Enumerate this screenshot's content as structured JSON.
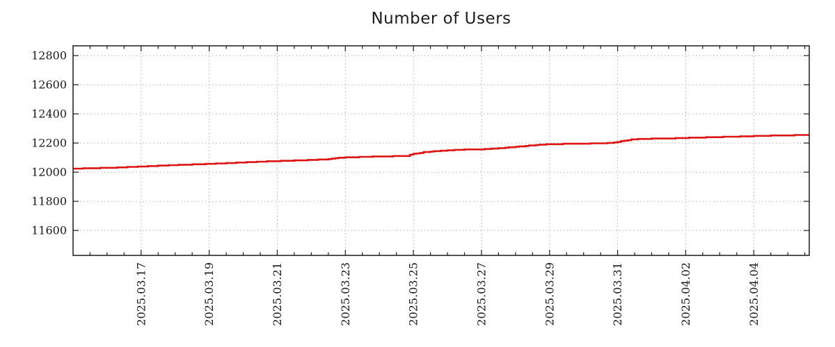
{
  "page": {
    "background_color": "#ffffff"
  },
  "chart_data": {
    "type": "line",
    "title": "Number of Users",
    "grid": {
      "style": "dotted",
      "color": "#b5b5b5",
      "shown": true
    },
    "axis_color": "#1a1a1a",
    "x_axis": {
      "start_date": "2025.03.15",
      "end_day_offset": 21.63,
      "major_tick_day_offsets": [
        2,
        4,
        6,
        8,
        10,
        12,
        14,
        16,
        18,
        20
      ],
      "major_tick_labels": [
        "2025.03.17",
        "2025.03.19",
        "2025.03.21",
        "2025.03.23",
        "2025.03.25",
        "2025.03.27",
        "2025.03.29",
        "2025.03.31",
        "2025.04.02",
        "2025.04.04"
      ],
      "minor_tick_interval_days": 0.5,
      "label_rotation_deg": -90
    },
    "y_axis": {
      "min": 11429,
      "max": 12867,
      "tick_values": [
        11600,
        11800,
        12000,
        12200,
        12400,
        12600,
        12800
      ],
      "tick_labels": [
        "11600",
        "11800",
        "12000",
        "12200",
        "12400",
        "12600",
        "12800"
      ]
    },
    "series": [
      {
        "name": "number-of-users",
        "color": "#dc1414",
        "line_width": 2.6,
        "style": "steps",
        "points_day_offset_value": [
          [
            0.0,
            12024
          ],
          [
            0.4,
            12026
          ],
          [
            0.8,
            12029
          ],
          [
            1.2,
            12031
          ],
          [
            1.6,
            12035
          ],
          [
            2.0,
            12039
          ],
          [
            2.5,
            12044
          ],
          [
            3.0,
            12049
          ],
          [
            3.5,
            12053
          ],
          [
            4.0,
            12057
          ],
          [
            4.5,
            12062
          ],
          [
            5.0,
            12067
          ],
          [
            5.5,
            12072
          ],
          [
            6.0,
            12076
          ],
          [
            6.5,
            12080
          ],
          [
            7.0,
            12084
          ],
          [
            7.4,
            12088
          ],
          [
            7.7,
            12097
          ],
          [
            8.0,
            12101
          ],
          [
            8.5,
            12105
          ],
          [
            9.0,
            12108
          ],
          [
            9.5,
            12110
          ],
          [
            9.8,
            12112
          ],
          [
            10.0,
            12126
          ],
          [
            10.3,
            12137
          ],
          [
            10.7,
            12145
          ],
          [
            11.0,
            12150
          ],
          [
            11.5,
            12155
          ],
          [
            12.0,
            12157
          ],
          [
            12.4,
            12162
          ],
          [
            12.8,
            12170
          ],
          [
            13.0,
            12174
          ],
          [
            13.5,
            12184
          ],
          [
            13.8,
            12190
          ],
          [
            14.0,
            12192
          ],
          [
            14.5,
            12194
          ],
          [
            15.0,
            12196
          ],
          [
            15.5,
            12198
          ],
          [
            15.8,
            12202
          ],
          [
            16.0,
            12208
          ],
          [
            16.2,
            12216
          ],
          [
            16.4,
            12224
          ],
          [
            16.7,
            12228
          ],
          [
            17.0,
            12230
          ],
          [
            17.5,
            12231
          ],
          [
            18.0,
            12235
          ],
          [
            18.5,
            12238
          ],
          [
            19.0,
            12241
          ],
          [
            19.5,
            12244
          ],
          [
            20.0,
            12248
          ],
          [
            20.5,
            12251
          ],
          [
            21.0,
            12253
          ],
          [
            21.3,
            12254
          ],
          [
            21.63,
            12256
          ]
        ]
      }
    ]
  }
}
